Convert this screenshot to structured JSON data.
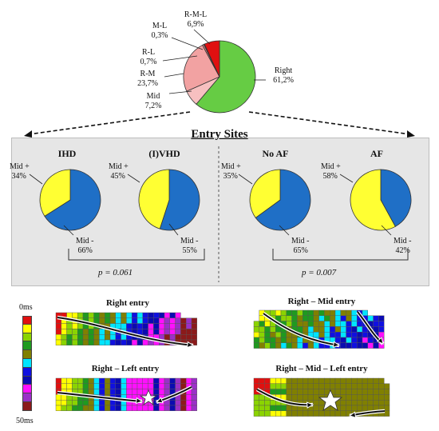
{
  "chart_data": [
    {
      "type": "pie",
      "categories": [
        "Right",
        "Mid",
        "R-M",
        "R-L",
        "M-L",
        "R-M-L"
      ],
      "values": [
        61.2,
        7.2,
        23.7,
        0.7,
        0.3,
        6.9
      ],
      "labels": [
        "Right\n61,2%",
        "Mid\n7,2%",
        "R-M\n23,7%",
        "R-L\n0,7%",
        "M-L\n0,3%",
        "R-M-L\n6,9%"
      ],
      "colors": [
        "#66cc44",
        "#f7c0c0",
        "#f2a2a2",
        "#e88a8a",
        "#d45a5a",
        "#e01010"
      ]
    },
    {
      "type": "pie",
      "group": "Entry Sites",
      "title": "IHD",
      "categories": [
        "Mid +",
        "Mid -"
      ],
      "values": [
        34,
        66
      ],
      "labels": [
        "Mid +\n34%",
        "Mid -\n66%"
      ],
      "colors": [
        "#ffff33",
        "#1f6fc6"
      ]
    },
    {
      "type": "pie",
      "group": "Entry Sites",
      "title": "(I)VHD",
      "categories": [
        "Mid +",
        "Mid -"
      ],
      "values": [
        45,
        55
      ],
      "labels": [
        "Mid +\n45%",
        "Mid -\n55%"
      ],
      "colors": [
        "#ffff33",
        "#1f6fc6"
      ]
    },
    {
      "type": "pie",
      "group": "Entry Sites",
      "title": "No AF",
      "categories": [
        "Mid +",
        "Mid -"
      ],
      "values": [
        35,
        65
      ],
      "labels": [
        "Mid +\n35%",
        "Mid -\n65%"
      ],
      "colors": [
        "#ffff33",
        "#1f6fc6"
      ]
    },
    {
      "type": "pie",
      "group": "Entry Sites",
      "title": "AF",
      "categories": [
        "Mid +",
        "Mid -"
      ],
      "values": [
        58,
        42
      ],
      "labels": [
        "Mid +\n58%",
        "Mid -\n42%"
      ],
      "colors": [
        "#ffff33",
        "#1f6fc6"
      ]
    }
  ],
  "entry_title": "Entry Sites",
  "pvalues": [
    "p = 0.061",
    "p = 0.007"
  ],
  "maps": {
    "right": "Right entry",
    "right_mid": "Right – Mid  entry",
    "right_left": "Right – Left entry",
    "right_mid_left": "Right – Mid – Left entry"
  },
  "scale": {
    "top": "0ms",
    "bottom": "50ms",
    "colors": [
      "#e01010",
      "#ffff00",
      "#8bd400",
      "#1f9a1f",
      "#808000",
      "#00e5ff",
      "#1010e0",
      "#0b0bb0",
      "#ff10ff",
      "#9b30c8",
      "#8b1a1a"
    ]
  }
}
